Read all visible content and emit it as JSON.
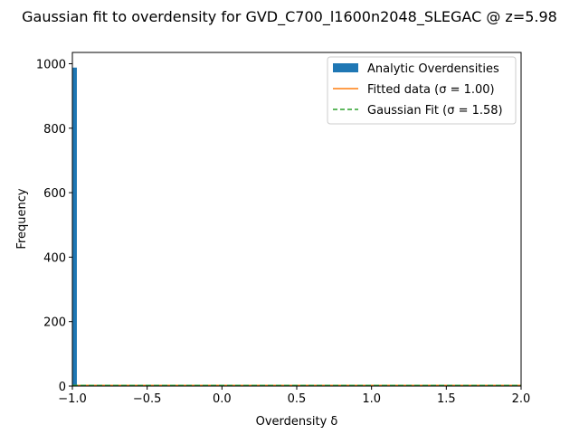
{
  "chart_data": {
    "type": "bar",
    "title": "Gaussian fit to overdensity for GVD_C700_l1600n2048_SLEGAC @ z=5.98",
    "xlabel": "Overdensity δ",
    "ylabel": "Frequency",
    "xlim": [
      -1.0,
      2.0
    ],
    "ylim": [
      0,
      1035
    ],
    "xticks": [
      -1.0,
      -0.5,
      0.0,
      0.5,
      1.0,
      1.5,
      2.0
    ],
    "xtick_labels": [
      "−1.0",
      "−0.5",
      "0.0",
      "0.5",
      "1.0",
      "1.5",
      "2.0"
    ],
    "yticks": [
      0,
      200,
      400,
      600,
      800,
      1000
    ],
    "ytick_labels": [
      "0",
      "200",
      "400",
      "600",
      "800",
      "1000"
    ],
    "grid": false,
    "legend_position": "top-right",
    "histogram": {
      "name": "Analytic Overdensities",
      "color": "#1f77b4",
      "bins": [
        {
          "x0": -1.0,
          "x1": -0.97,
          "count": 988
        }
      ]
    },
    "series": [
      {
        "name": "Fitted data (σ = 1.00)",
        "color": "#ff7f0e",
        "style": "solid",
        "x": [
          -1.0,
          2.0
        ],
        "y": [
          2,
          2
        ]
      },
      {
        "name": "Gaussian Fit (σ = 1.58)",
        "color": "#2ca02c",
        "style": "dashed",
        "x": [
          -1.0,
          2.0
        ],
        "y": [
          2,
          2
        ]
      }
    ]
  }
}
